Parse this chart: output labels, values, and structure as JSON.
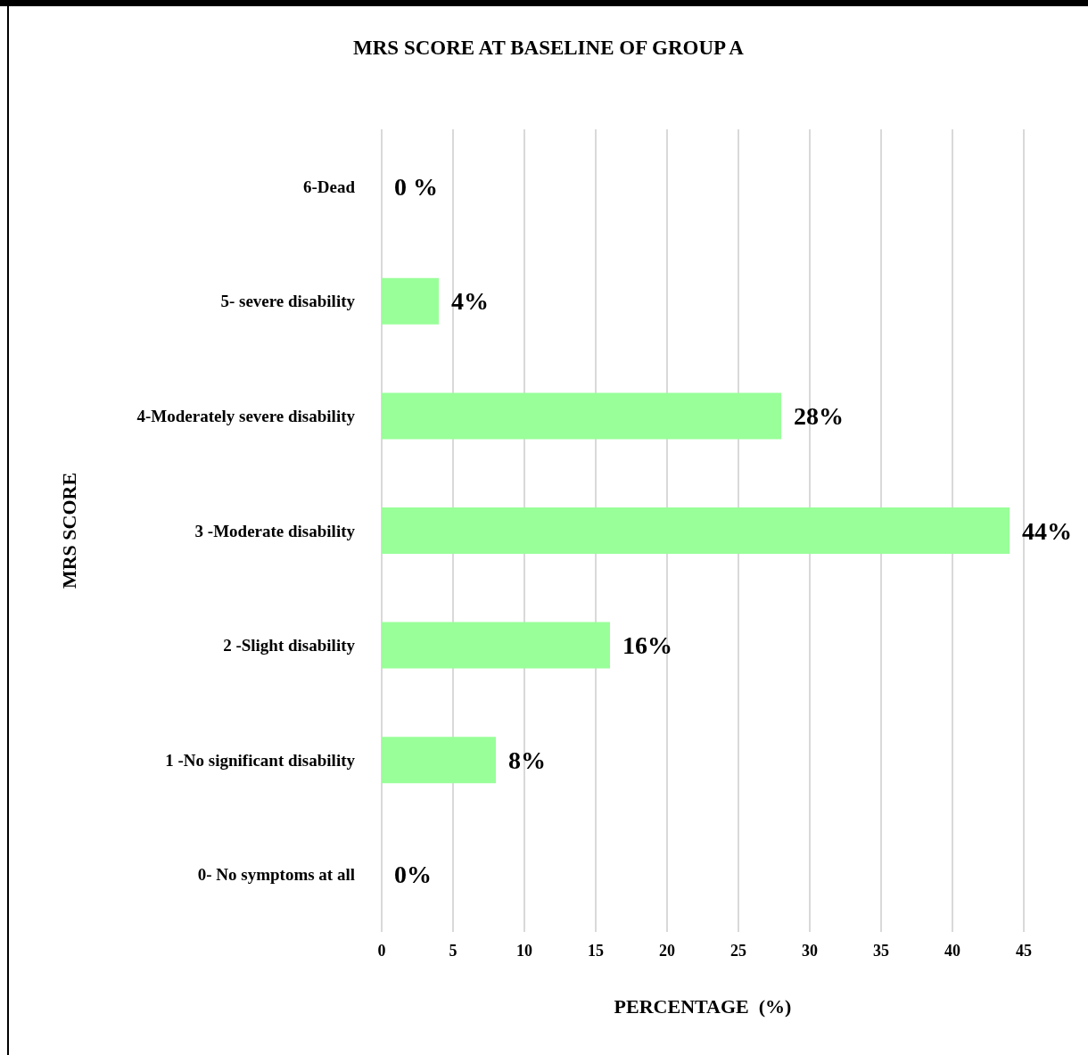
{
  "chart_data": {
    "type": "bar",
    "orientation": "horizontal",
    "title": "MRS SCORE AT BASELINE OF GROUP A",
    "xlabel": "PERCENTAGE  (%)",
    "ylabel": "MRS SCORE",
    "categories": [
      "6-Dead",
      "5- severe disability",
      "4-Moderately severe disability",
      "3 -Moderate disability",
      "2 -Slight disability",
      "1 -No significant disability",
      "0- No symptoms at all"
    ],
    "values": [
      0,
      4,
      28,
      44,
      16,
      8,
      0
    ],
    "value_labels": [
      "0 %",
      "4%",
      "28%",
      "44%",
      "16%",
      "8%",
      "0%"
    ],
    "color": "#99ff99",
    "xlim": [
      0,
      45
    ],
    "xticks": [
      0,
      5,
      10,
      15,
      20,
      25,
      30,
      35,
      40,
      45
    ],
    "grid": "x"
  }
}
